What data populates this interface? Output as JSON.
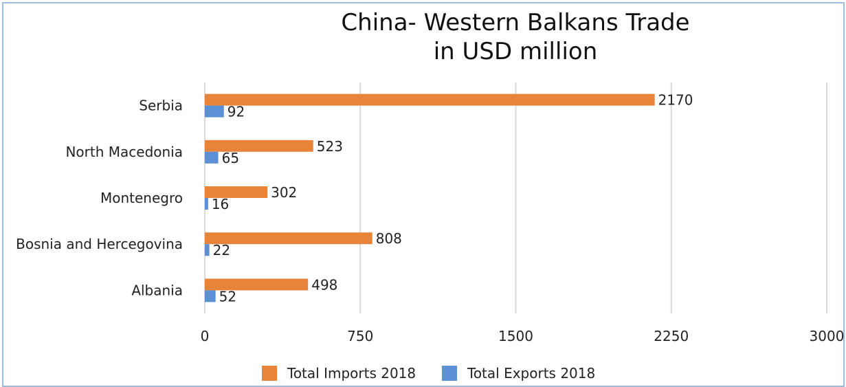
{
  "chart_data": {
    "type": "bar",
    "orientation": "horizontal",
    "title": "China- Western Balkans Trade",
    "subtitle": "in USD million",
    "categories": [
      "Serbia",
      "North Macedonia",
      "Montenegro",
      "Bosnia and Hercegovina",
      "Albania"
    ],
    "series": [
      {
        "name": "Total Imports 2018",
        "color": "#e8843a",
        "values": [
          2170,
          523,
          302,
          808,
          498
        ]
      },
      {
        "name": "Total Exports 2018",
        "color": "#5b8fd6",
        "values": [
          92,
          65,
          16,
          22,
          52
        ]
      }
    ],
    "xlim": [
      0,
      3000
    ],
    "xticks": [
      "0",
      "750",
      "1500",
      "2250",
      "3000"
    ],
    "grid": true,
    "legend_position": "bottom",
    "frame_color": "#9bbbe0",
    "grid_color": "#d9d9d9"
  }
}
